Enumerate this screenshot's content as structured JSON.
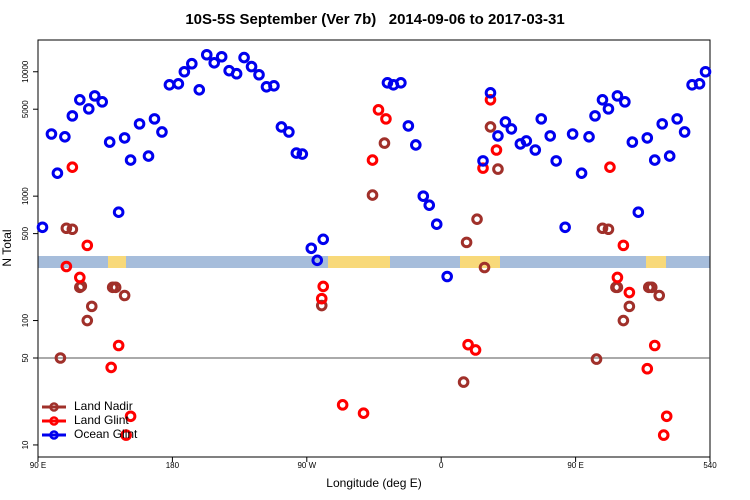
{
  "chart_data": {
    "type": "scatter",
    "title": "10S-5S September (Ver 7b)   2014-09-06 to 2017-03-31",
    "x_label": "Longitude (deg E)",
    "y_label": "N Total",
    "xlim": [
      90,
      540
    ],
    "xticks": [
      {
        "value": 90,
        "label": "90 E"
      },
      180,
      {
        "value": 270,
        "label": "90 W"
      },
      {
        "value": 360,
        "label": "0"
      },
      {
        "value": 450,
        "label": "90 E"
      },
      540
    ],
    "ylim": [
      8,
      18000
    ],
    "log_y": true,
    "yticks": [
      10,
      50,
      100,
      500,
      1000,
      5000,
      10000
    ],
    "hline": 50,
    "legend": "lower left",
    "series": [
      {
        "name": "Land Nadir",
        "color": "#a0302a",
        "x": [
          105,
          109,
          113,
          118,
          119,
          123,
          126,
          140,
          142,
          148,
          280,
          314,
          322,
          375,
          377,
          384,
          389,
          393,
          398,
          464,
          468,
          472,
          477,
          478,
          482,
          486,
          499,
          501,
          506
        ],
        "values": [
          50,
          552,
          542,
          185,
          189,
          100,
          130,
          185,
          185,
          159,
          132,
          1020,
          2670,
          32,
          425,
          653,
          267,
          3600,
          1650,
          49,
          552,
          542,
          185,
          185,
          100,
          130,
          185,
          185,
          159
        ]
      },
      {
        "name": "Land Glint",
        "color": "#ff0000",
        "x": [
          109,
          113,
          118,
          123,
          139,
          144,
          149,
          152,
          280,
          281,
          294,
          308,
          314,
          318,
          323,
          378,
          383,
          388,
          393,
          397,
          473,
          478,
          482,
          486,
          498,
          503,
          509,
          511
        ],
        "values": [
          272,
          1710,
          222,
          402,
          42,
          63,
          12,
          17,
          150,
          188,
          21,
          18,
          1950,
          4940,
          4180,
          64,
          58,
          1680,
          5950,
          2350,
          1710,
          222,
          402,
          168,
          41,
          63,
          12,
          17
        ]
      },
      {
        "name": "Ocean Glint",
        "color": "#0000ee",
        "x": [
          93,
          99,
          103,
          108,
          113,
          118,
          124,
          128,
          133,
          138,
          144,
          148,
          152,
          158,
          164,
          168,
          173,
          178,
          184,
          188,
          193,
          198,
          203,
          208,
          213,
          218,
          223,
          228,
          233,
          238,
          243,
          248,
          253,
          258,
          263,
          267,
          273,
          277,
          281,
          324,
          328,
          333,
          338,
          343,
          348,
          352,
          357,
          364,
          388,
          393,
          398,
          403,
          407,
          413,
          417,
          423,
          427,
          433,
          437,
          443,
          448,
          454,
          459,
          463,
          468,
          472,
          478,
          483,
          488,
          492,
          498,
          503,
          508,
          513,
          518,
          523,
          528,
          533,
          537
        ],
        "values": [
          562,
          3160,
          1530,
          3000,
          4420,
          5950,
          5030,
          6400,
          5730,
          2720,
          743,
          2940,
          1950,
          3810,
          2100,
          4180,
          3280,
          7850,
          8000,
          10000,
          11600,
          7160,
          13700,
          11800,
          13200,
          10200,
          9640,
          13000,
          11000,
          9460,
          7570,
          7710,
          3600,
          3280,
          2220,
          2180,
          381,
          305,
          450,
          8150,
          7850,
          8150,
          3670,
          2580,
          1000,
          846,
          595,
          226,
          1920,
          6770,
          3050,
          3950,
          3470,
          2630,
          2780,
          2350,
          4180,
          3050,
          1920,
          562,
          3160,
          1530,
          3000,
          4420,
          5950,
          5030,
          6400,
          5730,
          2720,
          743,
          2940,
          1950,
          3810,
          2100,
          4180,
          3280,
          7850,
          8000,
          10000
        ]
      }
    ]
  }
}
